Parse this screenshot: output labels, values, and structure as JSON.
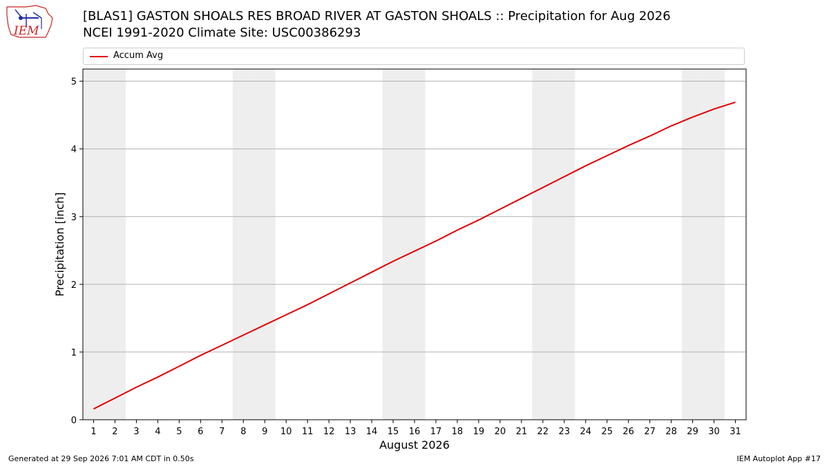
{
  "header": {
    "logo_text": "IEM",
    "title_line1": "[BLAS1] GASTON SHOALS RES BROAD RIVER  AT GASTON SHOALS :: Precipitation for Aug 2026",
    "title_line2": "NCEI 1991-2020 Climate Site: USC00386293"
  },
  "footer": {
    "left": "Generated at 29 Sep 2026 7:01 AM CDT in 0.50s",
    "right": "IEM Autoplot App #17"
  },
  "colors": {
    "series": "#e00000",
    "weekend_band": "#eeeeee",
    "grid": "#b0b0b0",
    "logo": "#cc2222"
  },
  "chart_data": {
    "type": "line",
    "xlabel": "August 2026",
    "ylabel": "Precipitation [inch]",
    "x": [
      1,
      2,
      3,
      4,
      5,
      6,
      7,
      8,
      9,
      10,
      11,
      12,
      13,
      14,
      15,
      16,
      17,
      18,
      19,
      20,
      21,
      22,
      23,
      24,
      25,
      26,
      27,
      28,
      29,
      30,
      31
    ],
    "series": [
      {
        "name": "Accum Avg",
        "values": [
          0.16,
          0.32,
          0.48,
          0.63,
          0.79,
          0.95,
          1.1,
          1.25,
          1.4,
          1.55,
          1.7,
          1.86,
          2.02,
          2.18,
          2.34,
          2.49,
          2.64,
          2.8,
          2.95,
          3.11,
          3.27,
          3.43,
          3.59,
          3.75,
          3.9,
          4.05,
          4.19,
          4.34,
          4.47,
          4.59,
          4.69
        ]
      }
    ],
    "xlim": [
      0.5,
      31.5
    ],
    "ylim": [
      0,
      5.18
    ],
    "yticks": [
      0,
      1,
      2,
      3,
      4,
      5
    ],
    "weekend_days": [
      1,
      2,
      8,
      9,
      15,
      16,
      22,
      23,
      29,
      30
    ],
    "grid": "horizontal",
    "legend_position": "top"
  }
}
